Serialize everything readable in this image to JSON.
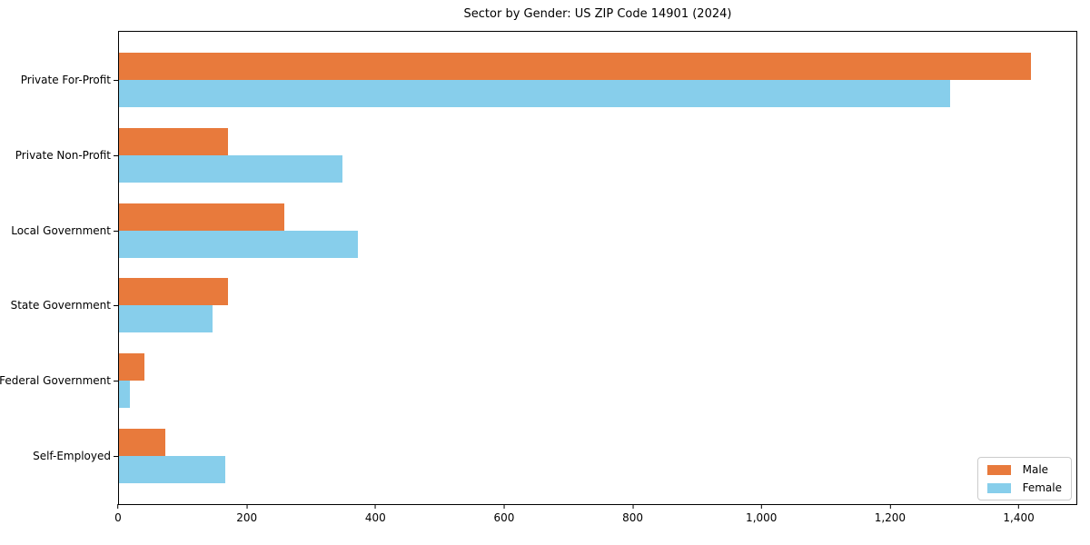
{
  "chart_data": {
    "type": "bar",
    "orientation": "horizontal",
    "title": "Sector by Gender: US ZIP Code 14901 (2024)",
    "categories": [
      "Private For-Profit",
      "Private Non-Profit",
      "Local Government",
      "State Government",
      "Federal Government",
      "Self-Employed"
    ],
    "series": [
      {
        "name": "Male",
        "color": "#e87a3c",
        "values": [
          1420,
          170,
          258,
          170,
          40,
          72
        ]
      },
      {
        "name": "Female",
        "color": "#87ceeb",
        "values": [
          1295,
          348,
          372,
          145,
          17,
          165
        ]
      }
    ],
    "xlabel": "",
    "ylabel": "",
    "xlim": [
      0,
      1491
    ],
    "xticks": [
      {
        "value": 0,
        "label": "0"
      },
      {
        "value": 200,
        "label": "200"
      },
      {
        "value": 400,
        "label": "400"
      },
      {
        "value": 600,
        "label": "600"
      },
      {
        "value": 800,
        "label": "800"
      },
      {
        "value": 1000,
        "label": "1,000"
      },
      {
        "value": 1200,
        "label": "1,200"
      },
      {
        "value": 1400,
        "label": "1,400"
      }
    ],
    "grid": false,
    "legend": {
      "position": "lower right",
      "labels": [
        "Male",
        "Female"
      ]
    }
  }
}
